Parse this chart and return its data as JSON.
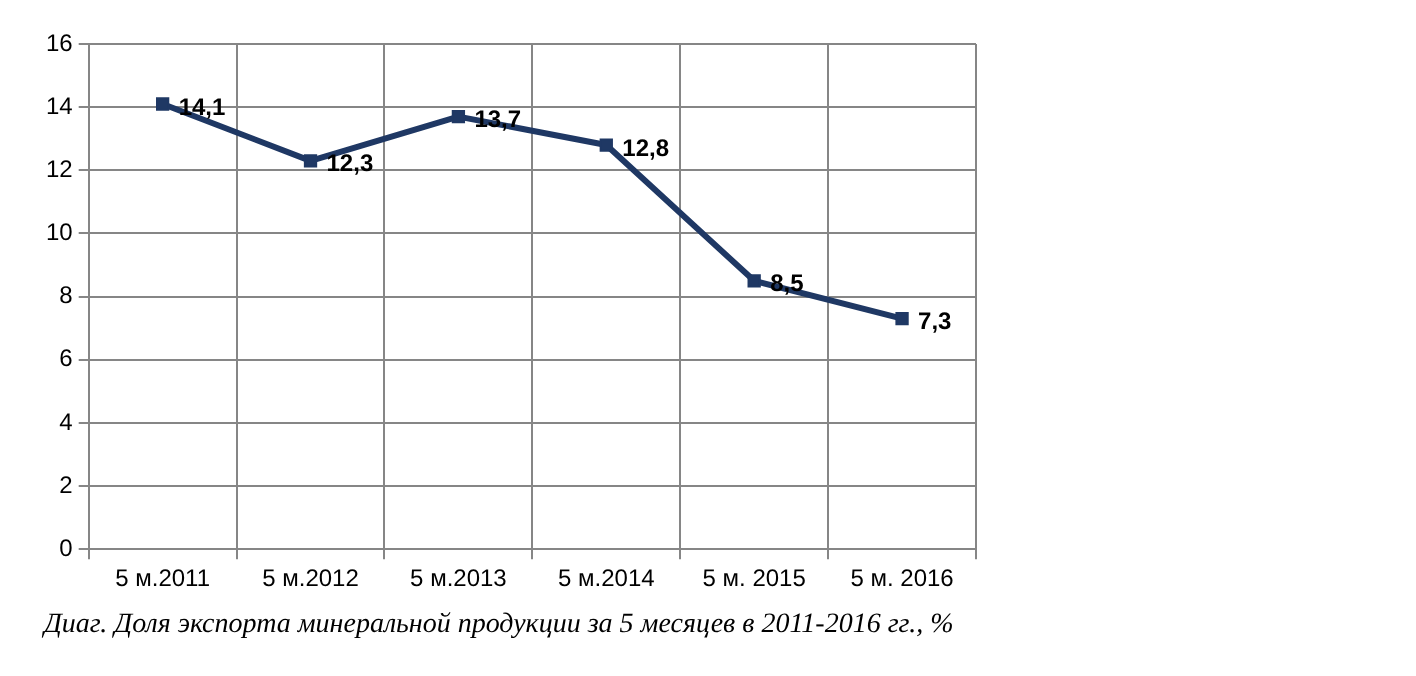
{
  "chart_data": {
    "type": "line",
    "categories": [
      "5 м.2011",
      "5 м.2012",
      "5 м.2013",
      "5 м.2014",
      "5 м. 2015",
      "5 м. 2016"
    ],
    "series": [
      {
        "color": "#1f3864",
        "values": [
          14.1,
          12.3,
          13.7,
          12.8,
          8.5,
          7.3
        ],
        "value_labels": [
          "14,1",
          "12,3",
          "13,7",
          "12,8",
          "8,5",
          "7,3"
        ]
      }
    ],
    "ylim": [
      0,
      16
    ],
    "yticks": [
      0,
      2,
      4,
      6,
      8,
      10,
      12,
      14,
      16
    ],
    "grid": true,
    "legend": false,
    "marker": "square",
    "line_style": "solid",
    "annotations": [
      "Диаг. Доля экспорта минеральной продукции за 5 месяцев в 2011-2016 гг., %"
    ]
  }
}
